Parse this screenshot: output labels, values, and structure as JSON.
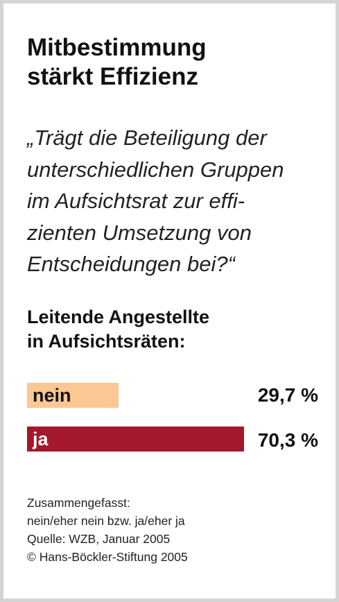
{
  "header": {
    "title_line1": "Mitbestimmung",
    "title_line2": "stärkt Effizienz"
  },
  "question": {
    "line1": "„Trägt die Beteiligung der",
    "line2": "unterschiedlichen Gruppen",
    "line3": "im Aufsichtsrat zur effi-",
    "line4": "zienten Umsetzung von",
    "line5": "Entscheidungen bei?“"
  },
  "subtitle": {
    "line1": "Leitende Angestellte",
    "line2": "in Aufsichtsräten:"
  },
  "chart_data": {
    "type": "bar",
    "orientation": "horizontal",
    "categories": [
      "nein",
      "ja"
    ],
    "values": [
      29.7,
      70.3
    ],
    "value_labels": [
      "29,7 %",
      "70,3 %"
    ],
    "unit": "%",
    "colors": [
      "#fbc793",
      "#a5172c"
    ],
    "label_colors": [
      "#111111",
      "#ffffff"
    ],
    "xlim": [
      0,
      70.3
    ]
  },
  "footer": {
    "line1": "Zusammengefasst:",
    "line2": "nein/eher nein bzw. ja/eher ja",
    "line3": "Quelle: WZB, Januar 2005",
    "line4": "© Hans-Böckler-Stiftung 2005"
  }
}
